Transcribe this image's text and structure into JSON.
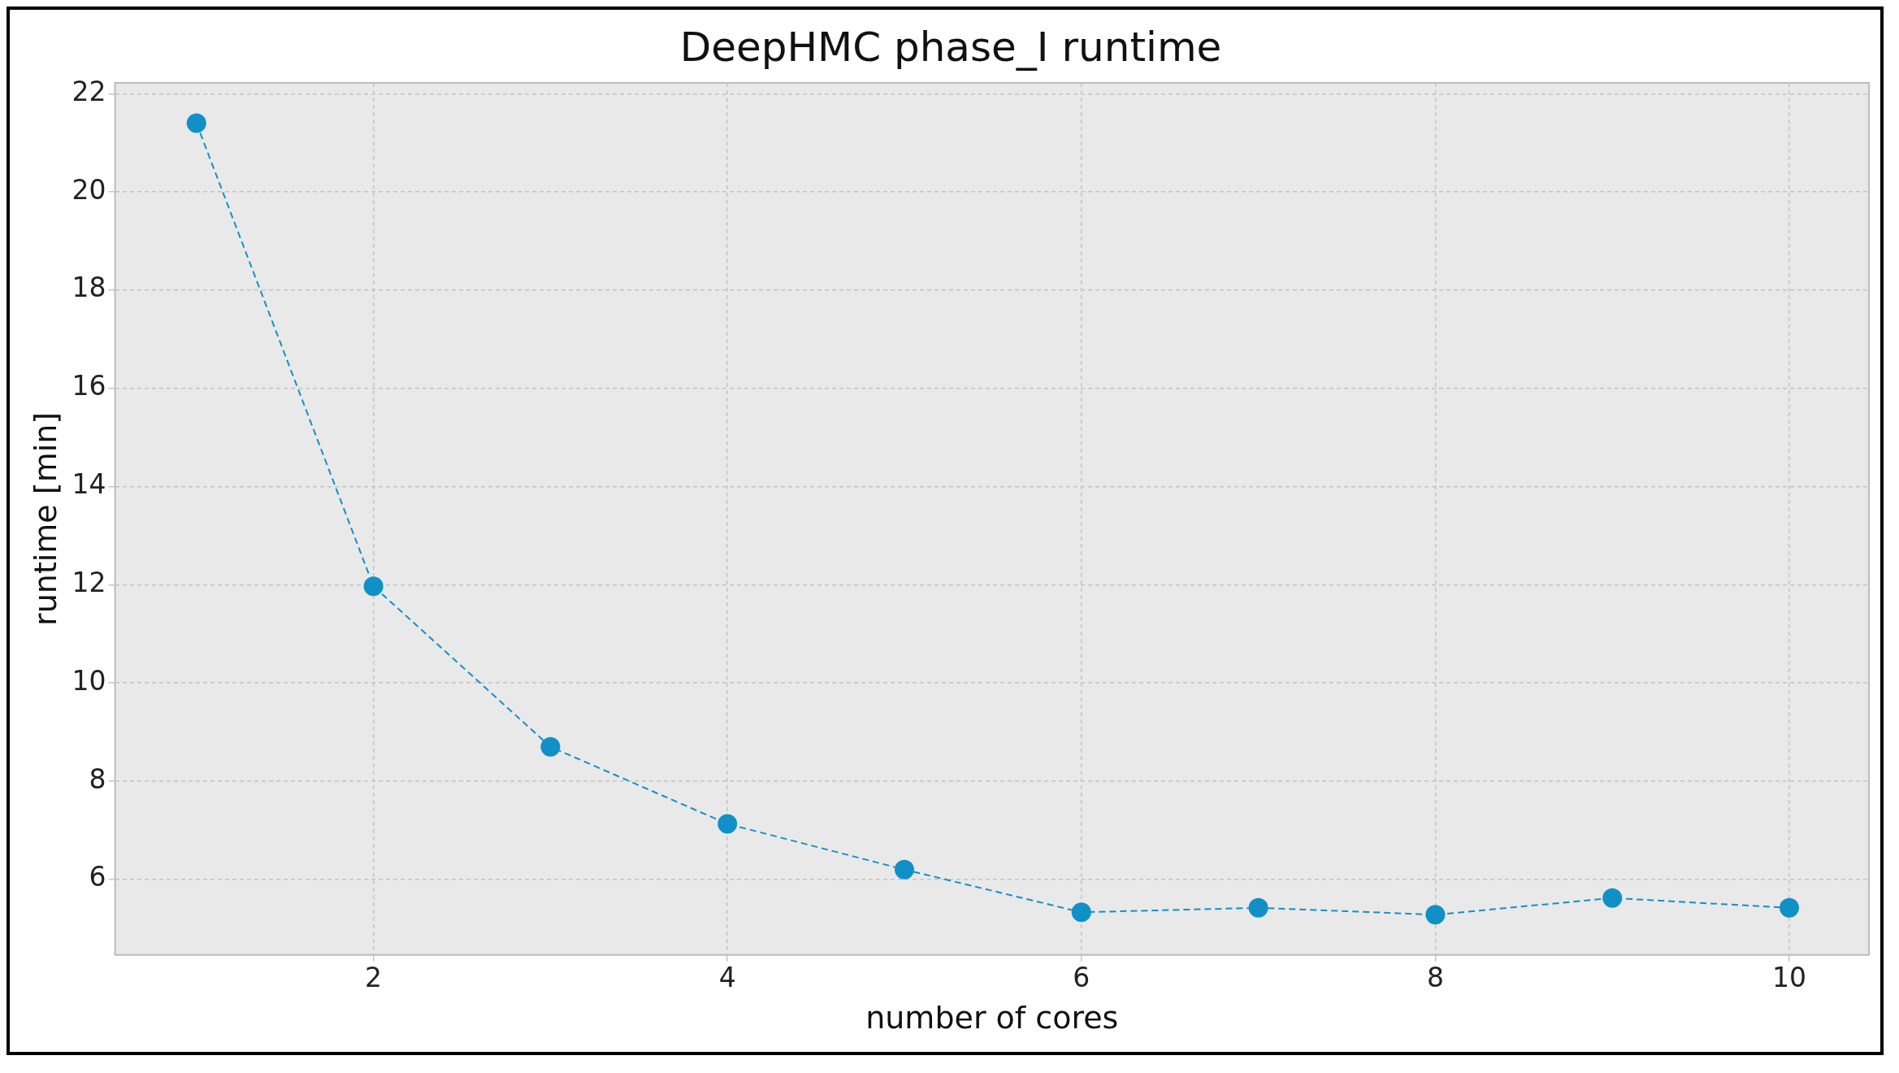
{
  "chart_data": {
    "type": "line",
    "title": "DeepHMC phase_I runtime",
    "xlabel": "number of cores",
    "ylabel": "runtime [min]",
    "x": [
      1,
      2,
      3,
      4,
      5,
      6,
      7,
      8,
      9,
      10
    ],
    "series": [
      {
        "color": "#1190c8",
        "values": [
          21.4,
          11.97,
          8.7,
          7.13,
          6.2,
          5.33,
          5.42,
          5.28,
          5.62,
          5.42
        ]
      }
    ],
    "xlim": [
      0.54,
      10.45
    ],
    "xticks": [
      2,
      4,
      6,
      8,
      10
    ],
    "ylim": [
      4.46,
      22.22
    ],
    "yticks": [
      6,
      8,
      10,
      12,
      14,
      16,
      18,
      20,
      22
    ],
    "grid": true,
    "legend": false,
    "marker": "circle",
    "line_style": "dashed"
  }
}
